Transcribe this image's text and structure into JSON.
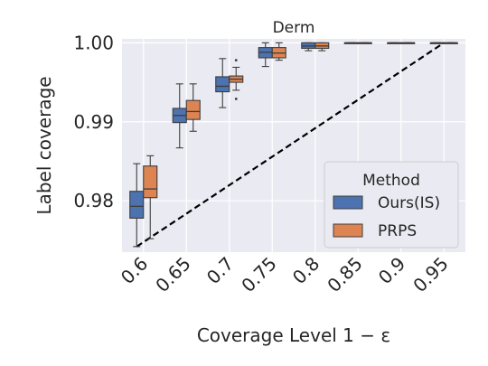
{
  "chart_data": {
    "type": "box",
    "title": "Derm",
    "xlabel": "Coverage Level 1 − ε",
    "ylabel": "Label coverage",
    "categories": [
      "0.6",
      "0.65",
      "0.7",
      "0.75",
      "0.8",
      "0.85",
      "0.9",
      "0.95"
    ],
    "ylim": [
      0.9735,
      1.0005
    ],
    "yticks": [
      0.98,
      0.99,
      1.0
    ],
    "ytick_labels": [
      "0.98",
      "0.99",
      "1.00"
    ],
    "grid": true,
    "legend": {
      "title": "Method",
      "placement": "lower-right"
    },
    "series": [
      {
        "name": "Ours(IS)",
        "color": "#4c72b0",
        "boxes": [
          {
            "whislo": 0.9742,
            "q1": 0.9778,
            "med": 0.9793,
            "q3": 0.9812,
            "whishi": 0.9847,
            "fliers": []
          },
          {
            "whislo": 0.9867,
            "q1": 0.9899,
            "med": 0.9908,
            "q3": 0.9917,
            "whishi": 0.9948,
            "fliers": []
          },
          {
            "whislo": 0.9918,
            "q1": 0.9938,
            "med": 0.9945,
            "q3": 0.9957,
            "whishi": 0.998,
            "fliers": []
          },
          {
            "whislo": 0.997,
            "q1": 0.9981,
            "med": 0.9988,
            "q3": 0.9994,
            "whishi": 1.0,
            "fliers": []
          },
          {
            "whislo": 0.999,
            "q1": 0.9993,
            "med": 0.9996,
            "q3": 1.0,
            "whishi": 1.0,
            "fliers": []
          },
          {
            "whislo": 1.0,
            "q1": 1.0,
            "med": 1.0,
            "q3": 1.0,
            "whishi": 1.0,
            "fliers": []
          },
          {
            "whislo": 1.0,
            "q1": 1.0,
            "med": 1.0,
            "q3": 1.0,
            "whishi": 1.0,
            "fliers": []
          },
          {
            "whislo": 1.0,
            "q1": 1.0,
            "med": 1.0,
            "q3": 1.0,
            "whishi": 1.0,
            "fliers": []
          }
        ]
      },
      {
        "name": "PRPS",
        "color": "#dd8452",
        "boxes": [
          {
            "whislo": 0.9752,
            "q1": 0.9804,
            "med": 0.9815,
            "q3": 0.9844,
            "whishi": 0.9857,
            "fliers": []
          },
          {
            "whislo": 0.9888,
            "q1": 0.9903,
            "med": 0.9913,
            "q3": 0.9927,
            "whishi": 0.9948,
            "fliers": []
          },
          {
            "whislo": 0.994,
            "q1": 0.995,
            "med": 0.9954,
            "q3": 0.9958,
            "whishi": 0.9969,
            "fliers": [
              0.9978,
              0.9929
            ]
          },
          {
            "whislo": 0.9978,
            "q1": 0.9981,
            "med": 0.9987,
            "q3": 0.9994,
            "whishi": 1.0,
            "fliers": []
          },
          {
            "whislo": 0.999,
            "q1": 0.9993,
            "med": 0.9996,
            "q3": 1.0,
            "whishi": 1.0,
            "fliers": []
          },
          {
            "whislo": 1.0,
            "q1": 1.0,
            "med": 1.0,
            "q3": 1.0,
            "whishi": 1.0,
            "fliers": []
          },
          {
            "whislo": 1.0,
            "q1": 1.0,
            "med": 1.0,
            "q3": 1.0,
            "whishi": 1.0,
            "fliers": []
          },
          {
            "whislo": 1.0,
            "q1": 1.0,
            "med": 1.0,
            "q3": 1.0,
            "whishi": 1.0,
            "fliers": []
          }
        ]
      }
    ],
    "reference_line": {
      "style": "dashed",
      "color": "#000000",
      "from": [
        0.6,
        0.9742
      ],
      "to": [
        0.95,
        1.0
      ]
    }
  }
}
